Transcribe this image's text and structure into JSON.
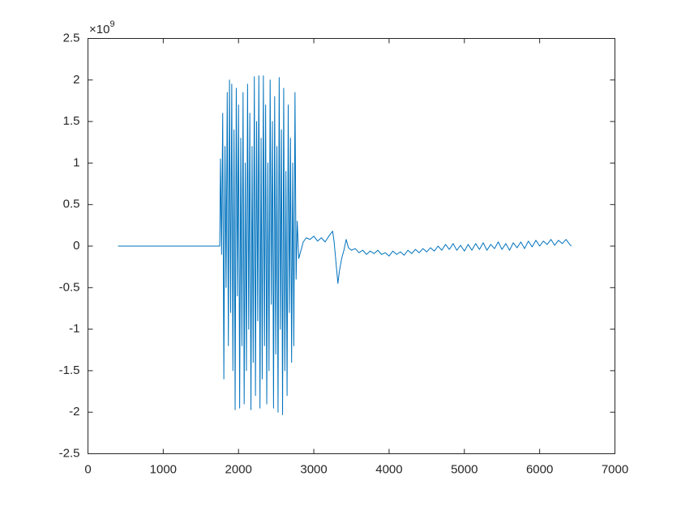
{
  "chart_data": {
    "type": "line",
    "y_exponent": {
      "base": "×10",
      "power": "9"
    },
    "color": "#0072bd",
    "x": [
      400,
      1750,
      1760,
      1775,
      1790,
      1805,
      1820,
      1835,
      1850,
      1865,
      1880,
      1895,
      1910,
      1925,
      1940,
      1955,
      1970,
      1985,
      2000,
      2015,
      2030,
      2045,
      2060,
      2075,
      2090,
      2105,
      2120,
      2135,
      2150,
      2165,
      2180,
      2195,
      2210,
      2225,
      2240,
      2255,
      2270,
      2285,
      2300,
      2315,
      2330,
      2345,
      2360,
      2375,
      2390,
      2405,
      2420,
      2435,
      2450,
      2465,
      2480,
      2495,
      2510,
      2525,
      2540,
      2555,
      2570,
      2585,
      2600,
      2615,
      2630,
      2645,
      2660,
      2675,
      2690,
      2705,
      2720,
      2735,
      2750,
      2765,
      2780,
      2800,
      2830,
      2860,
      2900,
      2950,
      3000,
      3050,
      3100,
      3150,
      3200,
      3250,
      3270,
      3300,
      3320,
      3340,
      3370,
      3400,
      3430,
      3460,
      3500,
      3550,
      3600,
      3650,
      3700,
      3750,
      3800,
      3850,
      3900,
      3950,
      4000,
      4050,
      4100,
      4150,
      4200,
      4250,
      4300,
      4350,
      4400,
      4450,
      4500,
      4550,
      4600,
      4650,
      4700,
      4750,
      4800,
      4850,
      4900,
      4950,
      5000,
      5050,
      5100,
      5150,
      5200,
      5250,
      5300,
      5350,
      5400,
      5450,
      5500,
      5550,
      5600,
      5650,
      5700,
      5750,
      5800,
      5850,
      5900,
      5950,
      6000,
      6050,
      6100,
      6150,
      6200,
      6250,
      6300,
      6350,
      6400,
      6420
    ],
    "values": [
      0,
      0,
      1.05,
      -0.1,
      1.6,
      -1.6,
      1.2,
      -0.5,
      1.85,
      -1.2,
      2.0,
      -0.8,
      1.95,
      -1.5,
      1.4,
      -1.97,
      1.9,
      -0.6,
      1.7,
      -1.95,
      1.3,
      -1.2,
      1.85,
      -1.9,
      1.0,
      -1.5,
      1.95,
      -1.0,
      1.6,
      -1.97,
      1.2,
      -1.4,
      2.04,
      -1.8,
      1.5,
      -0.9,
      2.05,
      -1.95,
      1.3,
      -1.6,
      2.05,
      -1.2,
      1.7,
      -1.9,
      1.0,
      -1.5,
      2.0,
      -0.7,
      1.5,
      -1.95,
      1.8,
      -1.3,
      1.2,
      -2.0,
      2.03,
      -1.0,
      1.4,
      -2.03,
      1.9,
      -1.5,
      0.9,
      -1.8,
      1.7,
      -0.8,
      1.3,
      -1.4,
      1.0,
      -1.2,
      1.85,
      -0.4,
      0.3,
      -0.15,
      -0.05,
      0.05,
      0.1,
      0.08,
      0.12,
      0.06,
      0.1,
      0.05,
      0.12,
      0.18,
      0.05,
      -0.25,
      -0.45,
      -0.3,
      -0.15,
      -0.05,
      0.08,
      -0.02,
      -0.05,
      -0.03,
      -0.08,
      -0.05,
      -0.1,
      -0.06,
      -0.09,
      -0.05,
      -0.1,
      -0.08,
      -0.12,
      -0.06,
      -0.1,
      -0.07,
      -0.11,
      -0.05,
      -0.09,
      -0.04,
      -0.08,
      -0.03,
      -0.07,
      -0.02,
      -0.06,
      0.0,
      -0.05,
      0.02,
      -0.04,
      0.03,
      -0.05,
      0.01,
      -0.06,
      0.02,
      -0.05,
      0.03,
      -0.04,
      0.04,
      -0.05,
      0.02,
      -0.03,
      0.05,
      -0.04,
      0.03,
      -0.05,
      0.04,
      -0.02,
      0.05,
      -0.03,
      0.06,
      -0.01,
      0.07,
      0.0,
      0.06,
      0.02,
      0.08,
      0.01,
      0.07,
      0.03,
      0.08,
      0.02,
      0.0
    ],
    "xlim": [
      0,
      7000
    ],
    "xticks": [
      0,
      1000,
      2000,
      3000,
      4000,
      5000,
      6000,
      7000
    ],
    "ylim": [
      -2.5,
      2.5
    ],
    "yticks": [
      -2.5,
      -2,
      -1.5,
      -1,
      -0.5,
      0,
      0.5,
      1,
      1.5,
      2,
      2.5
    ],
    "grid": false
  }
}
